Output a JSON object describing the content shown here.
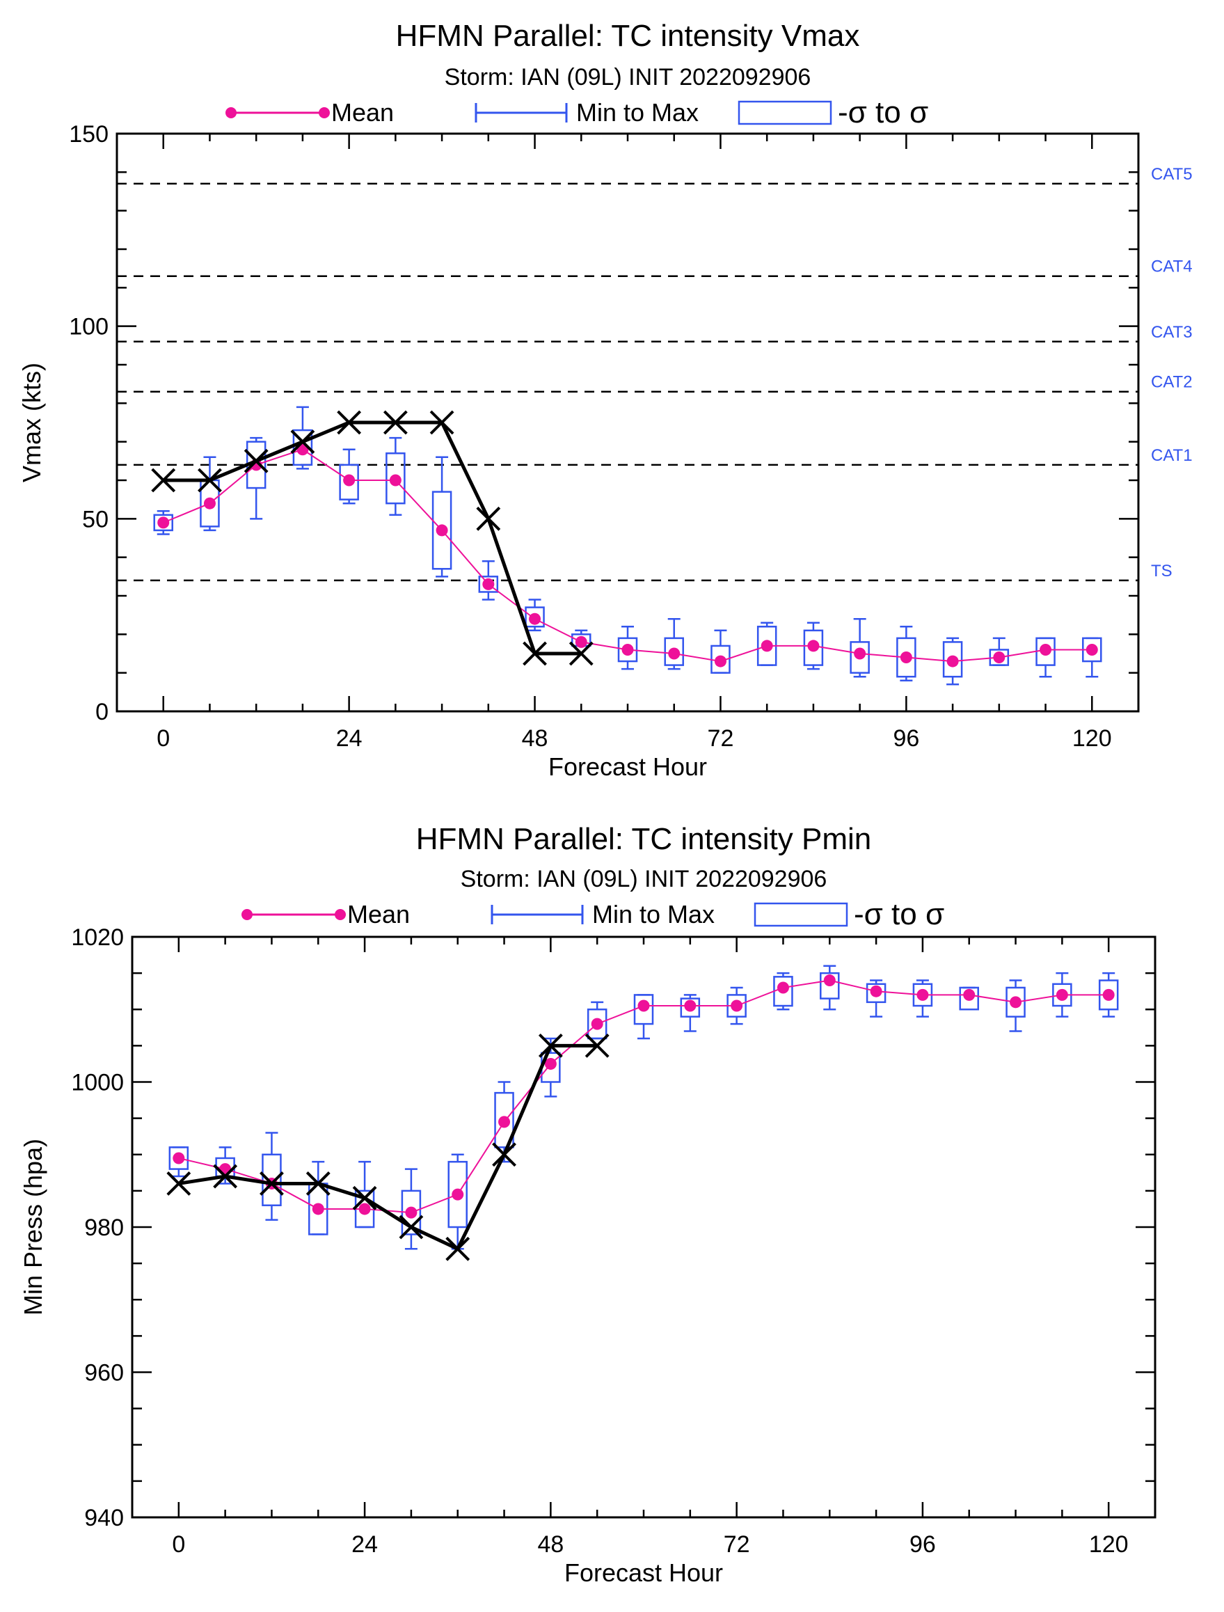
{
  "colors": {
    "mean": "#ee1199",
    "range": "#3355ee",
    "obs": "#000000",
    "axis": "#000000",
    "category_label": "#3355ee"
  },
  "chart_data": [
    {
      "type": "line",
      "title": "HFMN Parallel: TC intensity Vmax",
      "subtitle": "Storm: IAN (09L) INIT 2022092906",
      "xlabel": "Forecast Hour",
      "ylabel": "Vmax (kts)",
      "xlim": [
        -6,
        126
      ],
      "ylim": [
        0,
        150
      ],
      "xticks": [
        0,
        24,
        48,
        72,
        96,
        120
      ],
      "yticks": [
        0,
        50,
        100,
        150
      ],
      "legend": {
        "placement": "top",
        "mean": "Mean",
        "range": "Min to Max",
        "box": "-σ to σ"
      },
      "reference_lines": [
        {
          "label": "CAT5",
          "y": 137
        },
        {
          "label": "CAT4",
          "y": 113
        },
        {
          "label": "CAT3",
          "y": 96
        },
        {
          "label": "CAT2",
          "y": 83
        },
        {
          "label": "CAT1",
          "y": 64
        },
        {
          "label": "TS",
          "y": 34
        }
      ],
      "x": [
        0,
        6,
        12,
        18,
        24,
        30,
        36,
        42,
        48,
        54,
        60,
        66,
        72,
        78,
        84,
        90,
        96,
        102,
        108,
        114,
        120
      ],
      "series": [
        {
          "name": "Mean",
          "kind": "mean",
          "values": [
            49,
            54,
            64,
            68,
            60,
            60,
            47,
            33,
            24,
            18,
            16,
            15,
            13,
            17,
            17,
            15,
            14,
            13,
            14,
            16,
            16
          ]
        },
        {
          "kind": "min",
          "values": [
            46,
            47,
            50,
            63,
            54,
            51,
            35,
            29,
            21,
            17,
            11,
            11,
            10,
            12,
            11,
            9,
            8,
            7,
            12,
            9,
            9
          ]
        },
        {
          "kind": "max",
          "values": [
            52,
            66,
            71,
            79,
            68,
            71,
            66,
            39,
            29,
            21,
            22,
            24,
            21,
            23,
            23,
            24,
            22,
            19,
            19,
            19,
            19
          ]
        },
        {
          "kind": "sigma_low",
          "values": [
            47,
            48,
            58,
            64,
            55,
            54,
            37,
            31,
            22,
            17,
            13,
            12,
            10,
            12,
            12,
            10,
            9,
            9,
            12,
            12,
            13
          ]
        },
        {
          "kind": "sigma_high",
          "values": [
            51,
            60,
            70,
            73,
            64,
            67,
            57,
            35,
            27,
            20,
            19,
            19,
            17,
            22,
            21,
            18,
            19,
            18,
            16,
            19,
            19
          ]
        },
        {
          "kind": "observed",
          "x": [
            0,
            6,
            12,
            18,
            24,
            30,
            36,
            42,
            48,
            54
          ],
          "values": [
            60,
            60,
            65,
            70,
            75,
            75,
            75,
            50,
            15,
            15
          ]
        }
      ]
    },
    {
      "type": "line",
      "title": "HFMN Parallel: TC intensity Pmin",
      "subtitle": "Storm: IAN (09L) INIT 2022092906",
      "xlabel": "Forecast Hour",
      "ylabel": "Min Press (hpa)",
      "xlim": [
        -6,
        126
      ],
      "ylim": [
        940,
        1020
      ],
      "xticks": [
        0,
        24,
        48,
        72,
        96,
        120
      ],
      "yticks": [
        940,
        960,
        980,
        1000,
        1020
      ],
      "legend": {
        "placement": "top",
        "mean": "Mean",
        "range": "Min to Max",
        "box": "-σ to σ"
      },
      "reference_lines": [],
      "x": [
        0,
        6,
        12,
        18,
        24,
        30,
        36,
        42,
        48,
        54,
        60,
        66,
        72,
        78,
        84,
        90,
        96,
        102,
        108,
        114,
        120
      ],
      "series": [
        {
          "name": "Mean",
          "kind": "mean",
          "values": [
            989.5,
            988,
            986,
            982.5,
            982.5,
            982,
            984.5,
            994.5,
            1002.5,
            1008,
            1010.5,
            1010.5,
            1010.5,
            1013,
            1014,
            1012.5,
            1012,
            1012,
            1011,
            1012,
            1012
          ]
        },
        {
          "kind": "min",
          "values": [
            987,
            986,
            981,
            979,
            980,
            977,
            977,
            989,
            998,
            1006,
            1006,
            1007,
            1008,
            1010,
            1010,
            1009,
            1009,
            1010,
            1007,
            1009,
            1009
          ]
        },
        {
          "kind": "max",
          "values": [
            991,
            991,
            993,
            989,
            989,
            988,
            990,
            1000,
            1006,
            1011,
            1012,
            1012,
            1013,
            1015,
            1016,
            1014,
            1014,
            1013,
            1014,
            1015,
            1015
          ]
        },
        {
          "kind": "sigma_low",
          "values": [
            988,
            987,
            983,
            979,
            980,
            979,
            980,
            991,
            1000,
            1006,
            1008,
            1009,
            1009,
            1010.5,
            1011.5,
            1011,
            1010.5,
            1010,
            1009,
            1010.5,
            1010
          ]
        },
        {
          "kind": "sigma_high",
          "values": [
            991,
            989.5,
            990,
            986,
            985,
            985,
            989,
            998.5,
            1004,
            1010,
            1012,
            1011.5,
            1012,
            1014.5,
            1015,
            1013.5,
            1013.5,
            1013,
            1013,
            1013.5,
            1014
          ]
        },
        {
          "kind": "observed",
          "x": [
            0,
            6,
            12,
            18,
            24,
            30,
            36,
            42,
            48,
            54
          ],
          "values": [
            986,
            987,
            986,
            986,
            984,
            980,
            977,
            990,
            1005,
            1005
          ]
        }
      ]
    }
  ]
}
